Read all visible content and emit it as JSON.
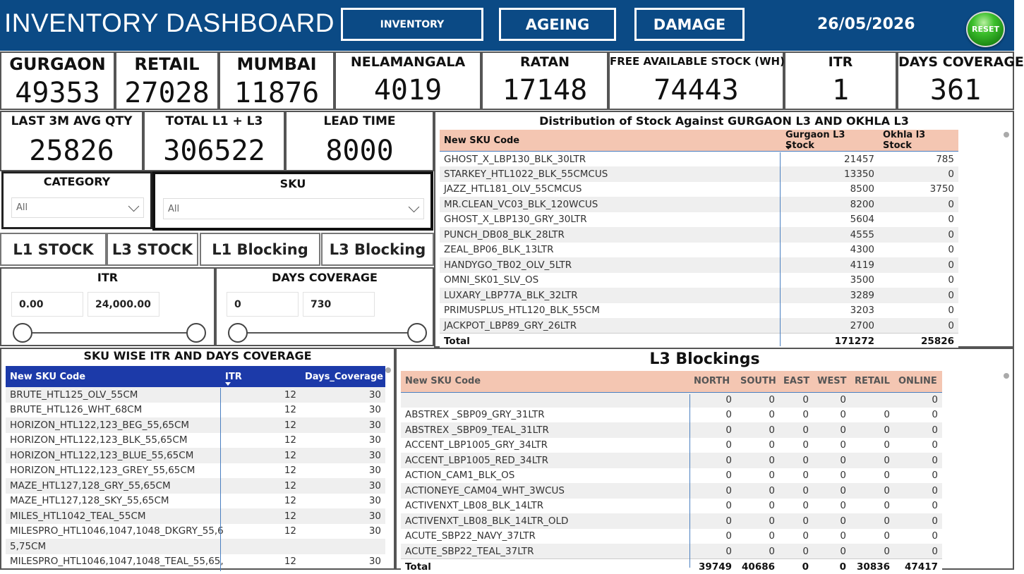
{
  "header": {
    "title": "INVENTORY DASHBOARD",
    "nav": {
      "inventory": "INVENTORY",
      "ageing": "AGEING",
      "damage": "DAMAGE"
    },
    "date": "26/05/2026",
    "reset": "RESET"
  },
  "kpis": {
    "gurgaon": {
      "label": "GURGAON",
      "value": "49353"
    },
    "retail": {
      "label": "RETAIL",
      "value": "27028"
    },
    "mumbai": {
      "label": "MUMBAI",
      "value": "11876"
    },
    "nelamangala": {
      "label": "NELAMANGALA",
      "value": "4019"
    },
    "ratan": {
      "label": "RATAN",
      "value": "17148"
    },
    "free_stock": {
      "label": "FREE AVAILABLE STOCK (WH)",
      "value": "74443"
    },
    "itr": {
      "label": "ITR",
      "value": "1"
    },
    "days_coverage": {
      "label": "DAYS COVERAGE",
      "value": "361"
    },
    "last3m": {
      "label": "LAST 3M AVG QTY",
      "value": "25826"
    },
    "total_l1_l3": {
      "label": "TOTAL L1 + L3",
      "value": "306522"
    },
    "lead_time": {
      "label": "LEAD TIME",
      "value": "8000"
    }
  },
  "slicers": {
    "category": {
      "label": "CATEGORY",
      "selected": "All"
    },
    "sku": {
      "label": "SKU",
      "selected": "All"
    },
    "itr": {
      "label": "ITR",
      "min": "0.00",
      "max": "24,000.00"
    },
    "days_coverage": {
      "label": "DAYS COVERAGE",
      "min": "0",
      "max": "730"
    }
  },
  "toggles": {
    "l1_stock": "L1 STOCK",
    "l3_stock": "L3 STOCK",
    "l1_blocking": "L1 Blocking",
    "l3_blocking": "L3 Blocking"
  },
  "colors": {
    "header_bg": "#0b4a85",
    "table_header_salmon": "#f4c6b2",
    "table_header_navy": "#1c3aa9"
  },
  "distribution": {
    "title": "Distribution of Stock Against GURGAON L3 AND OKHLA L3",
    "columns": [
      "New SKU Code",
      "Gurgaon L3 Stock",
      "Okhla l3 Stock"
    ],
    "rows": [
      [
        "GHOST_X_LBP130_BLK_30LTR",
        "21457",
        "785"
      ],
      [
        "STARKEY_HTL1022_BLK_55CMCUS",
        "13350",
        "0"
      ],
      [
        "JAZZ_HTL181_OLV_55CMCUS",
        "8500",
        "3750"
      ],
      [
        "MR.CLEAN_VC03_BLK_120WCUS",
        "8200",
        "0"
      ],
      [
        "GHOST_X_LBP130_GRY_30LTR",
        "5604",
        "0"
      ],
      [
        "PUNCH_DB08_BLK_28LTR",
        "4555",
        "0"
      ],
      [
        "ZEAL_BP06_BLK_13LTR",
        "4300",
        "0"
      ],
      [
        "HANDYGO_TB02_OLV_5LTR",
        "4119",
        "0"
      ],
      [
        "OMNI_SK01_SLV_OS",
        "3500",
        "0"
      ],
      [
        "LUXARY_LBP77A_BLK_32LTR",
        "3289",
        "0"
      ],
      [
        "PRIMUSPLUS_HTL120_BLK_55CM",
        "3203",
        "0"
      ],
      [
        "JACKPOT_LBP89_GRY_26LTR",
        "2700",
        "0"
      ]
    ],
    "total": [
      "Total",
      "171272",
      "25826"
    ]
  },
  "itr_table": {
    "title": "SKU WISE ITR AND DAYS COVERAGE",
    "columns": [
      "New SKU Code",
      "ITR",
      "Days_Coverage"
    ],
    "rows": [
      [
        "BRUTE_HTL125_OLV_55CM",
        "12",
        "30"
      ],
      [
        "BRUTE_HTL126_WHT_68CM",
        "12",
        "30"
      ],
      [
        "HORIZON_HTL122,123_BEG_55,65CM",
        "12",
        "30"
      ],
      [
        "HORIZON_HTL122,123_BLK_55,65CM",
        "12",
        "30"
      ],
      [
        "HORIZON_HTL122,123_BLUE_55,65CM",
        "12",
        "30"
      ],
      [
        "HORIZON_HTL122,123_GREY_55,65CM",
        "12",
        "30"
      ],
      [
        "MAZE_HTL127,128_GRY_55,65CM",
        "12",
        "30"
      ],
      [
        "MAZE_HTL127,128_SKY_55,65CM",
        "12",
        "30"
      ],
      [
        "MILES_HTL1042_TEAL_55CM",
        "12",
        "30"
      ],
      [
        "MILESPRO_HTL1046,1047,1048_DKGRY_55,6",
        "12",
        "30"
      ],
      [
        "5,75CM",
        "",
        ""
      ],
      [
        "MILESPRO_HTL1046,1047,1048_TEAL_55,65,",
        "12",
        "30"
      ]
    ]
  },
  "blockings": {
    "title": "L3 Blockings",
    "columns": [
      "New SKU Code",
      "NORTH",
      "SOUTH",
      "EAST",
      "WEST",
      "RETAIL",
      "ONLINE"
    ],
    "rows": [
      [
        "",
        "0",
        "0",
        "0",
        "0",
        "",
        "0"
      ],
      [
        "ABSTREX _SBP09_GRY_31LTR",
        "0",
        "0",
        "0",
        "0",
        "0",
        "0"
      ],
      [
        "ABSTREX _SBP09_TEAL_31LTR",
        "0",
        "0",
        "0",
        "0",
        "0",
        "0"
      ],
      [
        "ACCENT_LBP1005_GRY_34LTR",
        "0",
        "0",
        "0",
        "0",
        "0",
        "0"
      ],
      [
        "ACCENT_LBP1005_RED_34LTR",
        "0",
        "0",
        "0",
        "0",
        "0",
        "0"
      ],
      [
        "ACTION_CAM1_BLK_OS",
        "0",
        "0",
        "0",
        "0",
        "0",
        "0"
      ],
      [
        "ACTIONEYE_CAM04_WHT_3WCUS",
        "0",
        "0",
        "0",
        "0",
        "0",
        "0"
      ],
      [
        "ACTIVENXT_LB08_BLK_14LTR",
        "0",
        "0",
        "0",
        "0",
        "0",
        "0"
      ],
      [
        "ACTIVENXT_LB08_BLK_14LTR_OLD",
        "0",
        "0",
        "0",
        "0",
        "0",
        "0"
      ],
      [
        "ACUTE_SBP22_NAVY_37LTR",
        "0",
        "0",
        "0",
        "0",
        "0",
        "0"
      ],
      [
        "ACUTE_SBP22_TEAL_37LTR",
        "0",
        "0",
        "0",
        "0",
        "0",
        "0"
      ]
    ],
    "total": [
      "Total",
      "39749",
      "40686",
      "0",
      "0",
      "30836",
      "47417"
    ]
  }
}
